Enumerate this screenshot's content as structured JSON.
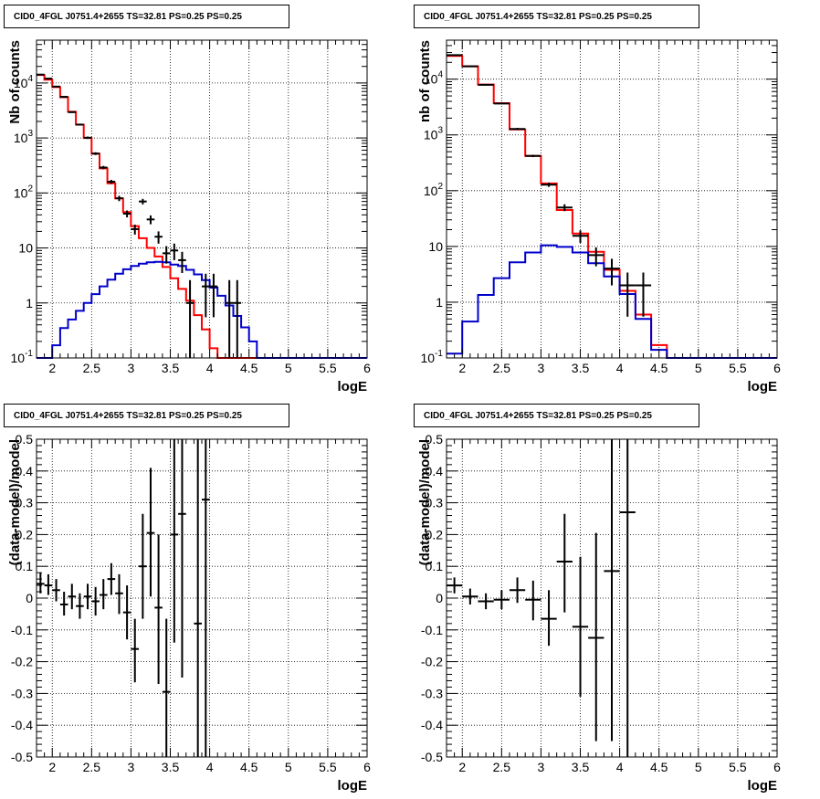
{
  "chart_data": [
    {
      "type": "line",
      "panel": "top-left",
      "title": "CID0_4FGL J0751.4+2655 TS=32.81 PS=0.25 PS=0.25",
      "xlabel": "logE",
      "ylabel": "Nb of counts",
      "xlim": [
        1.8,
        6
      ],
      "ylim": [
        0.1,
        60000
      ],
      "log_y": true,
      "grid": true,
      "x_ticks": [
        "2",
        "2.5",
        "3",
        "3.5",
        "4",
        "4.5",
        "5",
        "5.5",
        "6"
      ],
      "y_ticks": [
        "10^-1",
        "1",
        "10",
        "10^2",
        "10^3",
        "10^4"
      ],
      "bin_width": 0.1,
      "bin_edges_start": 1.8,
      "series": [
        {
          "color": "#ff0000",
          "values": [
            14000,
            11500,
            8400,
            5500,
            3000,
            1750,
            1000,
            520,
            280,
            150,
            80,
            45,
            25,
            15,
            10,
            7,
            4.5,
            2.8,
            1.8,
            1.1,
            0.6,
            0.33,
            0.15,
            0.1,
            0.1,
            0.1,
            0.1,
            0.1,
            0.1,
            0.1,
            0.1,
            0.1,
            0.1,
            0.1,
            0.1,
            0.1,
            0.1,
            0.1,
            0.1,
            0.1,
            0.1,
            0.1
          ]
        },
        {
          "color": "#0000cc",
          "values": [
            0.1,
            0.1,
            0.17,
            0.35,
            0.5,
            0.72,
            1.0,
            1.45,
            2.0,
            2.65,
            3.4,
            4.1,
            4.7,
            5.2,
            5.5,
            5.6,
            5.5,
            5.0,
            4.7,
            4.0,
            3.3,
            2.6,
            1.9,
            1.35,
            0.9,
            0.58,
            0.36,
            0.2,
            0.1,
            0.1,
            0.1,
            0.1,
            0.1,
            0.1,
            0.1,
            0.1,
            0.1,
            0.1,
            0.1,
            0.1,
            0.1,
            0.1
          ]
        }
      ],
      "points": [
        {
          "x": 1.85,
          "y": 14200,
          "lo": 14000,
          "hi": 14400
        },
        {
          "x": 1.95,
          "y": 12000,
          "lo": 11800,
          "hi": 12200
        },
        {
          "x": 2.05,
          "y": 8600,
          "lo": 8400,
          "hi": 8800
        },
        {
          "x": 2.15,
          "y": 5600,
          "lo": 5450,
          "hi": 5750
        },
        {
          "x": 2.25,
          "y": 2950,
          "lo": 2850,
          "hi": 3050
        },
        {
          "x": 2.35,
          "y": 1750,
          "lo": 1680,
          "hi": 1820
        },
        {
          "x": 2.45,
          "y": 1010,
          "lo": 960,
          "hi": 1060
        },
        {
          "x": 2.55,
          "y": 520,
          "lo": 490,
          "hi": 550
        },
        {
          "x": 2.65,
          "y": 290,
          "lo": 270,
          "hi": 310
        },
        {
          "x": 2.75,
          "y": 160,
          "lo": 147,
          "hi": 173
        },
        {
          "x": 2.85,
          "y": 80,
          "lo": 71,
          "hi": 89
        },
        {
          "x": 2.95,
          "y": 42,
          "lo": 36,
          "hi": 48
        },
        {
          "x": 3.05,
          "y": 22,
          "lo": 17.5,
          "hi": 26.5
        },
        {
          "x": 3.15,
          "y": 70,
          "lo": 62,
          "hi": 78
        },
        {
          "x": 3.25,
          "y": 33,
          "lo": 27,
          "hi": 39
        },
        {
          "x": 3.35,
          "y": 16,
          "lo": 12,
          "hi": 20
        },
        {
          "x": 3.45,
          "y": 8,
          "lo": 5.2,
          "hi": 10.8
        },
        {
          "x": 3.55,
          "y": 9,
          "lo": 6,
          "hi": 12
        },
        {
          "x": 3.65,
          "y": 6,
          "lo": 3.5,
          "hi": 8.5
        },
        {
          "x": 3.75,
          "y": 1,
          "lo": 0.1,
          "hi": 2.6
        },
        {
          "x": 3.95,
          "y": 2,
          "lo": 0.55,
          "hi": 3.4
        },
        {
          "x": 4.05,
          "y": 2,
          "lo": 0.55,
          "hi": 3.4
        },
        {
          "x": 4.25,
          "y": 1,
          "lo": 0.1,
          "hi": 2.6
        },
        {
          "x": 4.35,
          "y": 1,
          "lo": 0.1,
          "hi": 2.6
        }
      ]
    },
    {
      "type": "line",
      "panel": "top-right",
      "title": "CID0_4FGL J0751.4+2655 TS=32.81 PS=0.25 PS=0.25",
      "xlabel": "logE",
      "ylabel": "nb of counts",
      "xlim": [
        1.8,
        6
      ],
      "ylim": [
        0.1,
        50000
      ],
      "log_y": true,
      "grid": true,
      "x_ticks": [
        "2",
        "2.5",
        "3",
        "3.5",
        "4",
        "4.5",
        "5",
        "5.5",
        "6"
      ],
      "y_ticks": [
        "10^-1",
        "1",
        "10",
        "10^2",
        "10^3",
        "10^4"
      ],
      "bin_width": 0.2,
      "bin_edges_start": 1.8,
      "series": [
        {
          "color": "#ff0000",
          "values": [
            26000,
            17000,
            8000,
            3700,
            1250,
            420,
            135,
            45,
            17,
            8,
            3.8,
            1.6,
            0.6,
            0.17,
            0.1,
            0.1,
            0.1,
            0.1,
            0.1,
            0.1,
            0.1
          ]
        },
        {
          "color": "#0000cc",
          "values": [
            0.12,
            0.45,
            1.35,
            2.7,
            5.2,
            7.8,
            10.5,
            9.8,
            7.8,
            5.0,
            2.9,
            1.4,
            0.5,
            0.14,
            0.1,
            0.1,
            0.1,
            0.1,
            0.1,
            0.1,
            0.1
          ]
        }
      ],
      "points": [
        {
          "x": 1.9,
          "y": 27000,
          "lo": 26600,
          "hi": 27400
        },
        {
          "x": 2.1,
          "y": 17000,
          "lo": 16700,
          "hi": 17300
        },
        {
          "x": 2.3,
          "y": 7900,
          "lo": 7700,
          "hi": 8100
        },
        {
          "x": 2.5,
          "y": 3650,
          "lo": 3550,
          "hi": 3750
        },
        {
          "x": 2.7,
          "y": 1280,
          "lo": 1220,
          "hi": 1340
        },
        {
          "x": 2.9,
          "y": 420,
          "lo": 400,
          "hi": 440
        },
        {
          "x": 3.1,
          "y": 128,
          "lo": 117,
          "hi": 139
        },
        {
          "x": 3.3,
          "y": 50,
          "lo": 43,
          "hi": 57
        },
        {
          "x": 3.5,
          "y": 15.5,
          "lo": 11.6,
          "hi": 19.4
        },
        {
          "x": 3.7,
          "y": 7,
          "lo": 4.4,
          "hi": 9.6
        },
        {
          "x": 3.9,
          "y": 4,
          "lo": 2,
          "hi": 6
        },
        {
          "x": 4.1,
          "y": 2,
          "lo": 0.55,
          "hi": 3.4
        },
        {
          "x": 4.3,
          "y": 2,
          "lo": 0.55,
          "hi": 3.4
        }
      ]
    },
    {
      "type": "scatter",
      "panel": "bottom-left",
      "title": "CID0_4FGL J0751.4+2655 TS=32.81 PS=0.25 PS=0.25",
      "xlabel": "logE",
      "ylabel": "(data-model)/model",
      "xlim": [
        1.8,
        6
      ],
      "ylim": [
        -0.5,
        0.5
      ],
      "grid": true,
      "x_ticks": [
        "2",
        "2.5",
        "3",
        "3.5",
        "4",
        "4.5",
        "5",
        "5.5",
        "6"
      ],
      "y_ticks": [
        "-0.5",
        "-0.4",
        "-0.3",
        "-0.2",
        "-0.1",
        "0",
        "0.1",
        "0.2",
        "0.3",
        "0.4",
        "0.5"
      ],
      "bin_width": 0.1,
      "points": [
        {
          "x": 1.85,
          "y": 0.045,
          "lo": 0.015,
          "hi": 0.08
        },
        {
          "x": 1.95,
          "y": 0.04,
          "lo": 0.01,
          "hi": 0.075
        },
        {
          "x": 2.05,
          "y": 0.025,
          "lo": -0.01,
          "hi": 0.06
        },
        {
          "x": 2.15,
          "y": -0.02,
          "lo": -0.055,
          "hi": 0.02
        },
        {
          "x": 2.25,
          "y": 0.005,
          "lo": -0.035,
          "hi": 0.045
        },
        {
          "x": 2.35,
          "y": -0.025,
          "lo": -0.065,
          "hi": 0.015
        },
        {
          "x": 2.45,
          "y": 0.005,
          "lo": -0.035,
          "hi": 0.045
        },
        {
          "x": 2.55,
          "y": -0.01,
          "lo": -0.055,
          "hi": 0.035
        },
        {
          "x": 2.65,
          "y": 0.01,
          "lo": -0.035,
          "hi": 0.06
        },
        {
          "x": 2.75,
          "y": 0.06,
          "lo": 0.01,
          "hi": 0.11
        },
        {
          "x": 2.85,
          "y": 0.015,
          "lo": -0.05,
          "hi": 0.075
        },
        {
          "x": 2.95,
          "y": -0.045,
          "lo": -0.13,
          "hi": 0.04
        },
        {
          "x": 3.05,
          "y": -0.16,
          "lo": -0.265,
          "hi": -0.065
        },
        {
          "x": 3.15,
          "y": 0.1,
          "lo": -0.065,
          "hi": 0.265
        },
        {
          "x": 3.25,
          "y": 0.205,
          "lo": 0.005,
          "hi": 0.41
        },
        {
          "x": 3.35,
          "y": -0.03,
          "lo": -0.27,
          "hi": 0.2
        },
        {
          "x": 3.45,
          "y": -0.295,
          "lo": -0.5,
          "hi": -0.065
        },
        {
          "x": 3.55,
          "y": 0.2,
          "lo": -0.14,
          "hi": 0.5
        },
        {
          "x": 3.65,
          "y": 0.265,
          "lo": -0.25,
          "hi": 0.5
        },
        {
          "x": 3.85,
          "y": -0.08,
          "lo": -0.5,
          "hi": 0.5
        },
        {
          "x": 3.95,
          "y": 0.31,
          "lo": -0.5,
          "hi": 0.5
        }
      ]
    },
    {
      "type": "scatter",
      "panel": "bottom-right",
      "title": "CID0_4FGL J0751.4+2655 TS=32.81 PS=0.25 PS=0.25",
      "xlabel": "logE",
      "ylabel": "(data-model)/model",
      "xlim": [
        1.8,
        6
      ],
      "ylim": [
        -0.5,
        0.5
      ],
      "grid": true,
      "x_ticks": [
        "2",
        "2.5",
        "3",
        "3.5",
        "4",
        "4.5",
        "5",
        "5.5",
        "6"
      ],
      "y_ticks": [
        "-0.5",
        "-0.4",
        "-0.3",
        "-0.2",
        "-0.1",
        "0",
        "0.1",
        "0.2",
        "0.3",
        "0.4",
        "0.5"
      ],
      "bin_width": 0.2,
      "points": [
        {
          "x": 1.9,
          "y": 0.04,
          "lo": 0.015,
          "hi": 0.065
        },
        {
          "x": 2.1,
          "y": 0.005,
          "lo": -0.02,
          "hi": 0.03
        },
        {
          "x": 2.3,
          "y": -0.01,
          "lo": -0.035,
          "hi": 0.015
        },
        {
          "x": 2.5,
          "y": -0.005,
          "lo": -0.035,
          "hi": 0.025
        },
        {
          "x": 2.7,
          "y": 0.025,
          "lo": -0.015,
          "hi": 0.065
        },
        {
          "x": 2.9,
          "y": -0.005,
          "lo": -0.07,
          "hi": 0.055
        },
        {
          "x": 3.1,
          "y": -0.065,
          "lo": -0.15,
          "hi": 0.025
        },
        {
          "x": 3.3,
          "y": 0.115,
          "lo": -0.045,
          "hi": 0.265
        },
        {
          "x": 3.5,
          "y": -0.09,
          "lo": -0.31,
          "hi": 0.13
        },
        {
          "x": 3.7,
          "y": -0.125,
          "lo": -0.45,
          "hi": 0.205
        },
        {
          "x": 3.9,
          "y": 0.085,
          "lo": -0.45,
          "hi": 0.5
        },
        {
          "x": 4.1,
          "y": 0.27,
          "lo": -0.5,
          "hi": 0.5
        }
      ]
    }
  ]
}
